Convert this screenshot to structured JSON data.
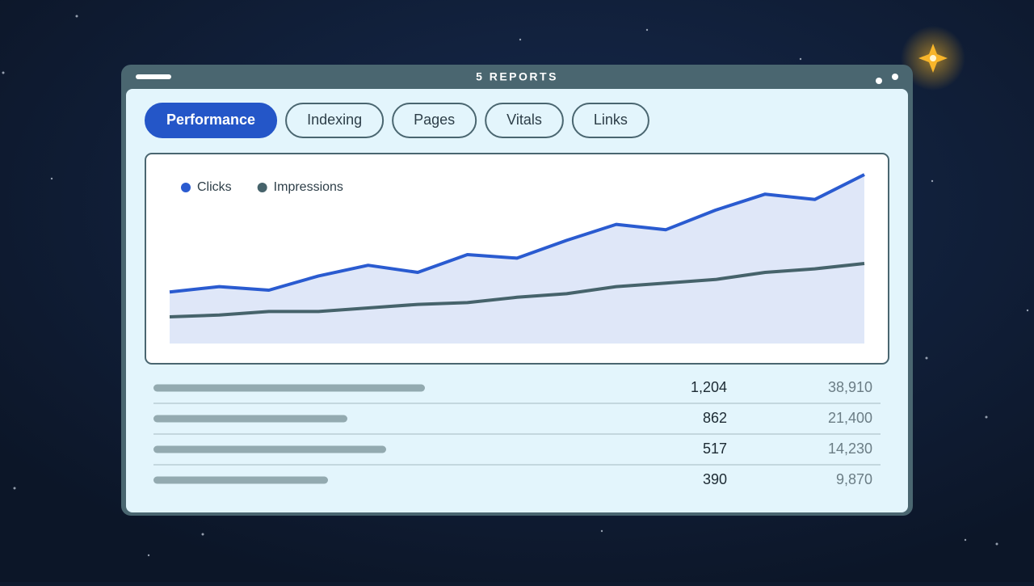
{
  "header": {
    "title": "5 REPORTS"
  },
  "tabs": [
    {
      "label": "Performance",
      "active": true
    },
    {
      "label": "Indexing",
      "active": false
    },
    {
      "label": "Pages",
      "active": false
    },
    {
      "label": "Vitals",
      "active": false
    },
    {
      "label": "Links",
      "active": false
    }
  ],
  "chart_data": {
    "type": "line",
    "categories": [
      null,
      null,
      null,
      null,
      null,
      null,
      null,
      null,
      null,
      null,
      null,
      null,
      null,
      null,
      null
    ],
    "series": [
      {
        "name": "Clicks",
        "color": "#2a5bd0",
        "area": true,
        "values": [
          29,
          32,
          30,
          38,
          44,
          40,
          50,
          48,
          58,
          67,
          64,
          75,
          84,
          81,
          95
        ]
      },
      {
        "name": "Impressions",
        "color": "#46636b",
        "area": false,
        "values": [
          15,
          16,
          18,
          18,
          20,
          22,
          23,
          26,
          28,
          32,
          34,
          36,
          40,
          42,
          45
        ]
      }
    ],
    "ylim": [
      0,
      100
    ]
  },
  "table": {
    "rows": [
      [
        "1,204",
        "38,910"
      ],
      [
        "862",
        "21,400"
      ],
      [
        "517",
        "14,230"
      ],
      [
        "390",
        "9,870"
      ]
    ]
  }
}
